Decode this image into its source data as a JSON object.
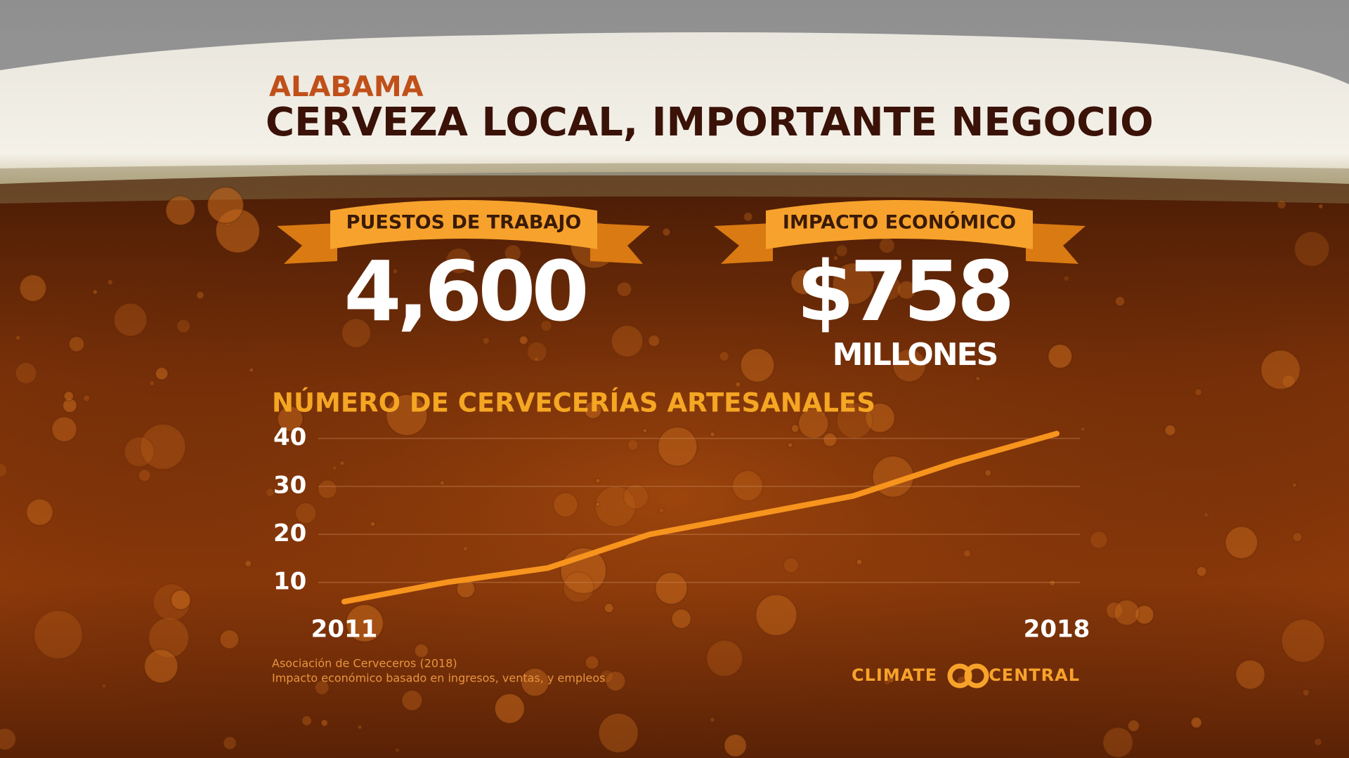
{
  "header": {
    "state": "ALABAMA",
    "title": "CERVEZA LOCAL, IMPORTANTE NEGOCIO"
  },
  "stats": [
    {
      "label": "PUESTOS DE TRABAJO",
      "value": "4,600"
    },
    {
      "label": "IMPACTO ECONÓMICO",
      "value": "$758",
      "unit": "MILLONES"
    }
  ],
  "chart_data": {
    "type": "line",
    "title": "NÚMERO DE CERVECERÍAS ARTESANALES",
    "x": [
      2011,
      2012,
      2013,
      2014,
      2015,
      2016,
      2017,
      2018
    ],
    "values": [
      6,
      10,
      13,
      20,
      24,
      28,
      35,
      41
    ],
    "color": "#f7941d",
    "xlim": [
      2011,
      2018
    ],
    "xticks": [
      2011,
      2018
    ],
    "ylim": [
      5,
      42
    ],
    "yticks": [
      10,
      20,
      30,
      40
    ],
    "grid": true
  },
  "source": [
    "Asociación de Cerveceros (2018)",
    "Impacto económico basado en ingresos, ventas, y empleos"
  ],
  "logo": {
    "left": "CLIMATE",
    "right": "CENTRAL"
  }
}
